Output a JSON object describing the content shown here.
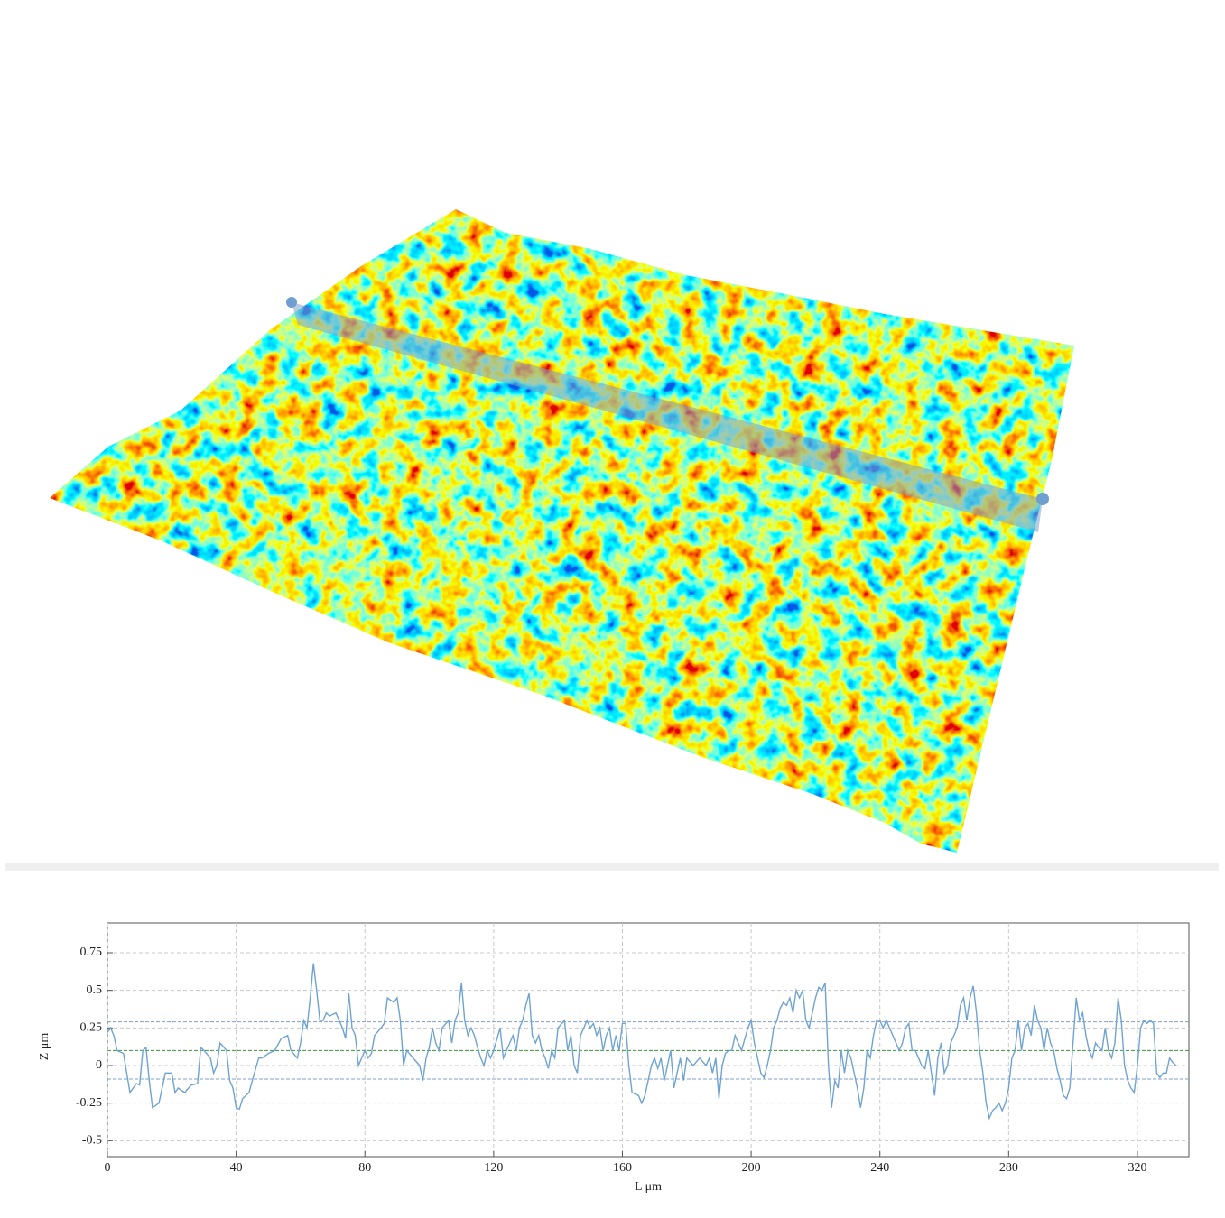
{
  "chart_data": {
    "type": "line",
    "x_label": "L μm",
    "y_label": "Z μm",
    "xlim": [
      0,
      336
    ],
    "ylim": [
      -0.606,
      0.948
    ],
    "xticks": [
      0,
      40,
      80,
      120,
      160,
      200,
      240,
      280,
      320
    ],
    "yticks": [
      -0.5,
      -0.25,
      0,
      0.25,
      0.5,
      0.75
    ],
    "grid": true,
    "reference_lines": [
      {
        "value": 0.29,
        "color": "#7f9fcf"
      },
      {
        "value": 0.1,
        "color": "#3a9a3a"
      },
      {
        "value": -0.09,
        "color": "#7f9fcf"
      }
    ],
    "series": [
      {
        "color": "#6fa3d2",
        "x": [
          0,
          1,
          2,
          3,
          5,
          6,
          7,
          8,
          9,
          10,
          11,
          12,
          13,
          14,
          16,
          18,
          20,
          21,
          22,
          24,
          26,
          28,
          29,
          30,
          32,
          33,
          34,
          35,
          37,
          38,
          39,
          40,
          41,
          42,
          44,
          45,
          47,
          48,
          50,
          52,
          54,
          56,
          57,
          59,
          60,
          61,
          62,
          63,
          64,
          65,
          66,
          67,
          68,
          69,
          71,
          72,
          73,
          74,
          75,
          76,
          77,
          78,
          79,
          80,
          81,
          82,
          83,
          85,
          86,
          87,
          89,
          90,
          91,
          92,
          93,
          95,
          97,
          98,
          99,
          100,
          101,
          102,
          103,
          104,
          106,
          107,
          108,
          109,
          110,
          111,
          112,
          113,
          114,
          115,
          116,
          117,
          118,
          119,
          120,
          122,
          123,
          124,
          125,
          126,
          127,
          128,
          129,
          130,
          131,
          132,
          133,
          134,
          135,
          136,
          137,
          138,
          139,
          140,
          142,
          143,
          144,
          145,
          146,
          147,
          149,
          150,
          151,
          152,
          153,
          154,
          155,
          156,
          157,
          158,
          159,
          160,
          161,
          162,
          163,
          165,
          166,
          167,
          168,
          169,
          170,
          171,
          172,
          173,
          174,
          175,
          176,
          177,
          178,
          179,
          180,
          182,
          184,
          186,
          187,
          188,
          189,
          190,
          191,
          192,
          193,
          194,
          195,
          196,
          197,
          199,
          200,
          201,
          202,
          203,
          204,
          205,
          206,
          207,
          208,
          209,
          210,
          211,
          212,
          213,
          214,
          215,
          216,
          217,
          218,
          219,
          220,
          221,
          222,
          223,
          224,
          225,
          226,
          227,
          228,
          229,
          230,
          231,
          232,
          233,
          234,
          235,
          236,
          237,
          238,
          239,
          240,
          241,
          242,
          243,
          244,
          245,
          246,
          247,
          248,
          249,
          250,
          251,
          252,
          253,
          254,
          255,
          256,
          257,
          258,
          259,
          260,
          261,
          262,
          263,
          264,
          265,
          266,
          267,
          268,
          269,
          270,
          271,
          272,
          273,
          274,
          275,
          276,
          277,
          278,
          279,
          280,
          281,
          282,
          283,
          284,
          285,
          286,
          287,
          288,
          289,
          290,
          291,
          292,
          293,
          294,
          295,
          296,
          297,
          298,
          299,
          300,
          301,
          302,
          303,
          304,
          305,
          306,
          307,
          308,
          309,
          310,
          311,
          312,
          313,
          314,
          315,
          316,
          317,
          318,
          319,
          320,
          321,
          322,
          323,
          324,
          325,
          326,
          327,
          328,
          329,
          330,
          331,
          332
        ],
        "values": [
          0.22,
          0.25,
          0.2,
          0.1,
          0.08,
          -0.05,
          -0.18,
          -0.15,
          -0.12,
          -0.13,
          0.1,
          0.12,
          -0.1,
          -0.28,
          -0.25,
          -0.05,
          -0.05,
          -0.18,
          -0.15,
          -0.18,
          -0.13,
          -0.12,
          0.12,
          0.1,
          0.05,
          -0.05,
          0,
          0.15,
          0.1,
          -0.1,
          -0.15,
          -0.28,
          -0.29,
          -0.22,
          -0.18,
          -0.1,
          0.05,
          0.05,
          0.08,
          0.1,
          0.18,
          0.2,
          0.1,
          0.05,
          0.15,
          0.3,
          0.25,
          0.45,
          0.68,
          0.5,
          0.3,
          0.3,
          0.35,
          0.33,
          0.35,
          0.3,
          0.25,
          0.18,
          0.48,
          0.25,
          0.2,
          0,
          0.05,
          0.1,
          0.05,
          0.08,
          0.2,
          0.25,
          0.28,
          0.45,
          0.42,
          0.45,
          0.3,
          0,
          0.1,
          0.05,
          0,
          -0.1,
          0.05,
          0.12,
          0.25,
          0.15,
          0.1,
          0.25,
          0.3,
          0.15,
          0.3,
          0.35,
          0.55,
          0.3,
          0.2,
          0.25,
          0.2,
          0.12,
          0.05,
          0,
          0.1,
          0.05,
          0.1,
          0.25,
          0.05,
          0.1,
          0.15,
          0.2,
          0.1,
          0.25,
          0.3,
          0.4,
          0.48,
          0.2,
          0.15,
          0.2,
          0.1,
          0.05,
          -0.02,
          0.1,
          0.05,
          0.25,
          0.3,
          0.1,
          0.2,
          0,
          -0.05,
          0.2,
          0.3,
          0.25,
          0.28,
          0.2,
          0.25,
          0.1,
          0.2,
          0.25,
          0.1,
          0.2,
          0.1,
          0.28,
          0.28,
          0,
          -0.18,
          -0.2,
          -0.25,
          -0.2,
          -0.1,
          0,
          0.05,
          -0.02,
          0.05,
          -0.1,
          0,
          0.1,
          -0.15,
          -0.05,
          0.05,
          -0.1,
          0.05,
          0,
          0.05,
          0,
          0.05,
          -0.05,
          0.05,
          -0.22,
          0,
          0.08,
          0.1,
          0.1,
          0.2,
          0.15,
          0.1,
          0.25,
          0.3,
          0.15,
          0.05,
          -0.05,
          -0.08,
          0,
          0.1,
          0.25,
          0.3,
          0.38,
          0.42,
          0.4,
          0.45,
          0.35,
          0.5,
          0.45,
          0.5,
          0.3,
          0.25,
          0.35,
          0.45,
          0.52,
          0.5,
          0.55,
          0,
          -0.28,
          -0.1,
          -0.15,
          0.1,
          -0.05,
          0.1,
          0.05,
          -0.05,
          -0.15,
          -0.28,
          -0.15,
          0.1,
          0.05,
          0.2,
          0.3,
          0.3,
          0.25,
          0.3,
          0.25,
          0.2,
          0.15,
          0.1,
          0.15,
          0.25,
          0.28,
          0.1,
          0.1,
          0.05,
          0,
          -0.02,
          0.1,
          -0.05,
          -0.2,
          0.05,
          0.15,
          -0.05,
          0,
          0.15,
          0.2,
          0.25,
          0.4,
          0.45,
          0.3,
          0.45,
          0.53,
          0.35,
          0.1,
          -0.05,
          -0.25,
          -0.35,
          -0.3,
          -0.28,
          -0.25,
          -0.3,
          -0.25,
          -0.15,
          0.05,
          0.1,
          0.3,
          0.1,
          0.25,
          0.28,
          0.2,
          0.4,
          0.3,
          0.25,
          0.1,
          0.25,
          0.15,
          0.1,
          -0.02,
          -0.1,
          -0.2,
          -0.22,
          -0.15,
          0.15,
          0.45,
          0.3,
          0.35,
          0.2,
          0.1,
          0.05,
          0.15,
          0.12,
          0.1,
          0.25,
          0.1,
          0.05,
          0.15,
          0.45,
          0.3,
          0,
          -0.1,
          -0.15,
          -0.18,
          0,
          0.25,
          0.3,
          0.28,
          0.3,
          0.28,
          -0.05,
          -0.08,
          -0.05,
          -0.05,
          0.05,
          0.02,
          0
        ]
      }
    ]
  }
}
